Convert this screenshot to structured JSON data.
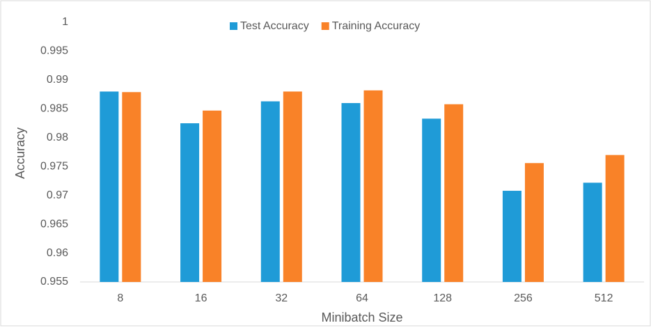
{
  "chart_data": {
    "type": "bar",
    "y_label": "Accuracy",
    "x_label": "Minibatch Size",
    "categories": [
      "8",
      "16",
      "32",
      "64",
      "128",
      "256",
      "512"
    ],
    "series": [
      {
        "name": "Test Accuracy",
        "color": "#1f9bd7",
        "values": [
          0.988,
          0.9825,
          0.9863,
          0.986,
          0.9833,
          0.9708,
          0.9722
        ]
      },
      {
        "name": "Training Accuracy",
        "color": "#f98228",
        "values": [
          0.9879,
          0.9847,
          0.988,
          0.9882,
          0.9858,
          0.9756,
          0.977
        ]
      }
    ],
    "ylim": [
      0.955,
      1
    ],
    "yticks": [
      0.955,
      0.96,
      0.965,
      0.97,
      0.975,
      0.98,
      0.985,
      0.99,
      0.995,
      1
    ],
    "grid": false,
    "legend": "top"
  }
}
